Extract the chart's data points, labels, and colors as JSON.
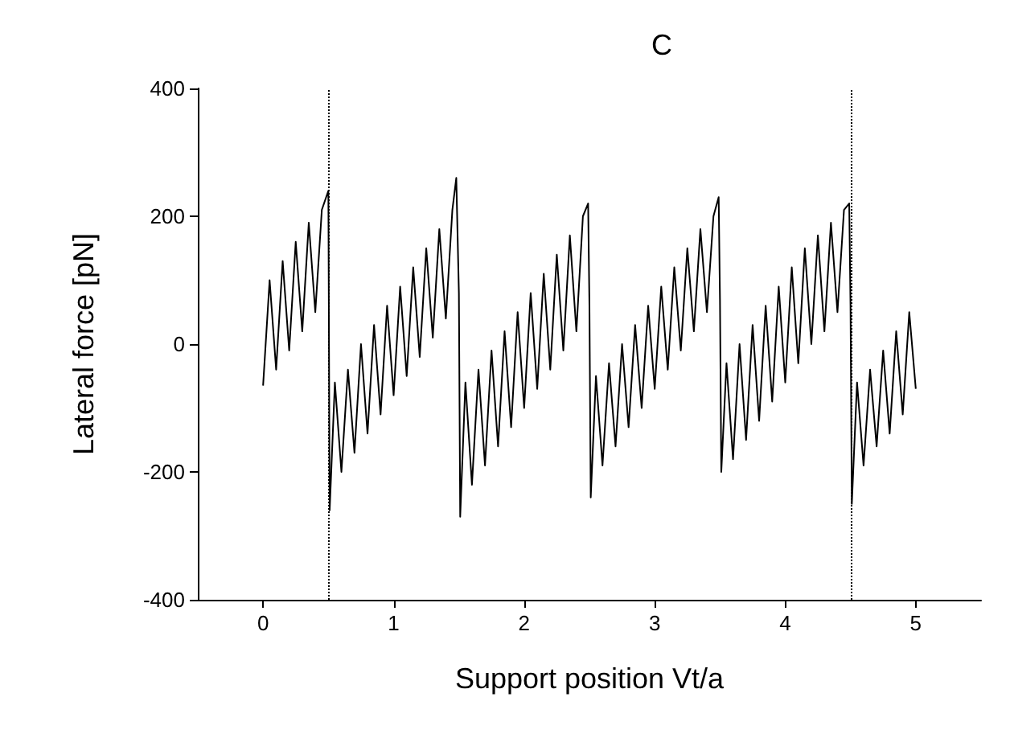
{
  "chart_data": {
    "type": "line",
    "title": "C",
    "xlabel": "Support position Vt/a",
    "ylabel": "Lateral force [pN]",
    "xlim": [
      -0.5,
      5.5
    ],
    "xticks": [
      0,
      1,
      2,
      3,
      4,
      5
    ],
    "ylim": [
      -400,
      400
    ],
    "yticks": [
      -400,
      -200,
      0,
      200,
      400
    ],
    "grid": false,
    "marker": "none",
    "line_style": "solid",
    "ref_lines": [
      {
        "axis": "x",
        "value": 0.5,
        "color": "#000000",
        "line_style": "dotted"
      },
      {
        "axis": "x",
        "value": 4.5,
        "color": "#000000",
        "line_style": "dotted"
      }
    ],
    "series": [
      {
        "color": "#000000",
        "x": [
          0,
          0.05,
          0.1,
          0.15,
          0.2,
          0.25,
          0.3,
          0.35,
          0.4,
          0.45,
          0.5,
          0.51,
          0.55,
          0.6,
          0.65,
          0.7,
          0.75,
          0.8,
          0.85,
          0.9,
          0.95,
          1.0,
          1.05,
          1.1,
          1.15,
          1.2,
          1.25,
          1.3,
          1.35,
          1.4,
          1.45,
          1.48,
          1.5,
          1.51,
          1.55,
          1.6,
          1.65,
          1.7,
          1.75,
          1.8,
          1.85,
          1.9,
          1.95,
          2.0,
          2.05,
          2.1,
          2.15,
          2.2,
          2.25,
          2.3,
          2.35,
          2.4,
          2.45,
          2.49,
          2.5,
          2.51,
          2.55,
          2.6,
          2.65,
          2.7,
          2.75,
          2.8,
          2.85,
          2.9,
          2.95,
          3.0,
          3.05,
          3.1,
          3.15,
          3.2,
          3.25,
          3.3,
          3.35,
          3.4,
          3.45,
          3.49,
          3.5,
          3.51,
          3.55,
          3.6,
          3.65,
          3.7,
          3.75,
          3.8,
          3.85,
          3.9,
          3.95,
          4.0,
          4.05,
          4.1,
          4.15,
          4.2,
          4.25,
          4.3,
          4.35,
          4.4,
          4.45,
          4.49,
          4.5,
          4.51,
          4.55,
          4.6,
          4.65,
          4.7,
          4.75,
          4.8,
          4.85,
          4.9,
          4.95,
          5.0
        ],
        "values": [
          -65,
          100,
          -40,
          130,
          -10,
          160,
          20,
          190,
          50,
          210,
          240,
          -260,
          -60,
          -200,
          -40,
          -170,
          0,
          -140,
          30,
          -110,
          60,
          -80,
          90,
          -50,
          120,
          -20,
          150,
          10,
          180,
          40,
          210,
          260,
          80,
          -270,
          -60,
          -220,
          -40,
          -190,
          -10,
          -160,
          20,
          -130,
          50,
          -100,
          80,
          -70,
          110,
          -40,
          140,
          -10,
          170,
          20,
          200,
          220,
          60,
          -240,
          -50,
          -190,
          -30,
          -160,
          0,
          -130,
          30,
          -100,
          60,
          -70,
          90,
          -40,
          120,
          -10,
          150,
          20,
          180,
          50,
          200,
          230,
          70,
          -200,
          -30,
          -180,
          0,
          -150,
          30,
          -120,
          60,
          -90,
          90,
          -60,
          120,
          -30,
          150,
          0,
          170,
          20,
          190,
          50,
          210,
          220,
          60,
          -250,
          -60,
          -190,
          -40,
          -160,
          -10,
          -140,
          20,
          -110,
          50,
          -70
        ]
      }
    ]
  }
}
